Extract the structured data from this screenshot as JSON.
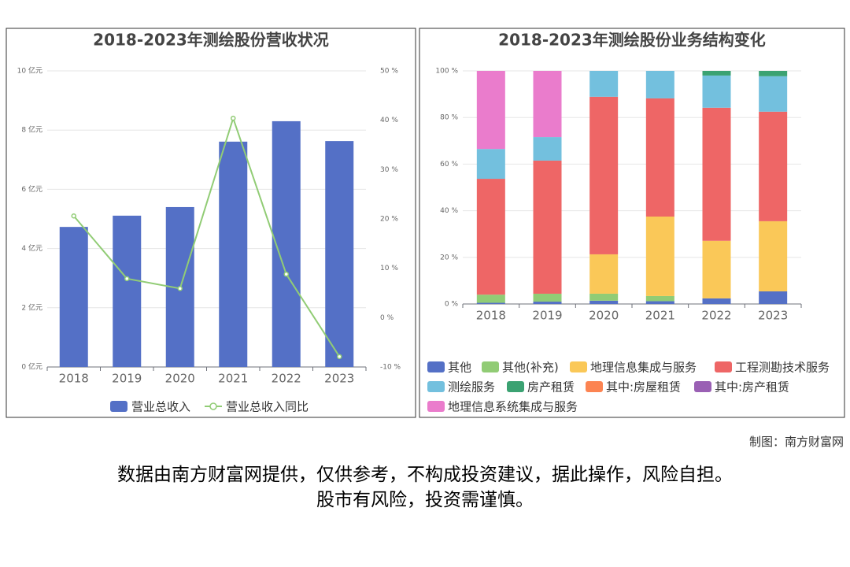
{
  "chart_data": [
    {
      "type": "bar",
      "title": "2018-2023年测绘股份营收状况",
      "categories": [
        "2018",
        "2019",
        "2020",
        "2021",
        "2022",
        "2023"
      ],
      "series": [
        {
          "name": "营业总收入",
          "color": "#5470c6",
          "values": [
            4.73,
            5.11,
            5.4,
            7.61,
            8.3,
            7.63
          ]
        },
        {
          "name": "营业总收入同比",
          "color": "#91cc75",
          "type": "line",
          "axis": "y2",
          "values": [
            20.6,
            7.9,
            5.9,
            40.4,
            8.8,
            -7.9
          ]
        }
      ],
      "ylim": [
        0,
        10
      ],
      "yticks": [
        {
          "value": 0,
          "label": "0 亿元"
        },
        {
          "value": 2,
          "label": "2 亿元"
        },
        {
          "value": 4,
          "label": "4 亿元"
        },
        {
          "value": 6,
          "label": "6 亿元"
        },
        {
          "value": 8,
          "label": "8 亿元"
        },
        {
          "value": 10,
          "label": "10 亿元"
        }
      ],
      "y2lim": [
        -10,
        50
      ],
      "y2ticks": [
        {
          "value": -10,
          "label": "-10 %"
        },
        {
          "value": 0,
          "label": "0 %"
        },
        {
          "value": 10,
          "label": "10 %"
        },
        {
          "value": 20,
          "label": "20 %"
        },
        {
          "value": 30,
          "label": "30 %"
        },
        {
          "value": 40,
          "label": "40 %"
        },
        {
          "value": 50,
          "label": "50 %"
        }
      ],
      "grid": true,
      "legend": "bottom"
    },
    {
      "type": "stacked_bar",
      "title": "2018-2023年测绘股份业务结构变化",
      "categories": [
        "2018",
        "2019",
        "2020",
        "2021",
        "2022",
        "2023"
      ],
      "series": [
        {
          "name": "其他",
          "color": "#5470c6",
          "values": [
            0.5,
            1,
            1.4,
            1.2,
            2.4,
            5.4
          ]
        },
        {
          "name": "其他(补充)",
          "color": "#91cc75",
          "values": [
            3.5,
            3.4,
            3,
            2.2,
            0,
            0
          ]
        },
        {
          "name": "地理信息集成与服务",
          "color": "#fac858",
          "values": [
            0,
            0,
            16.9,
            34.1,
            24.7,
            30.1
          ]
        },
        {
          "name": "工程测勘技术服务",
          "color": "#ee6666",
          "values": [
            49.7,
            57.1,
            67.6,
            50.7,
            57.1,
            47
          ]
        },
        {
          "name": "测绘服务",
          "color": "#73c0de",
          "values": [
            12.8,
            10.1,
            11.1,
            11.8,
            13.8,
            15.2
          ]
        },
        {
          "name": "房产租赁",
          "color": "#3ba272",
          "values": [
            0,
            0,
            0,
            0,
            2,
            2.3
          ]
        },
        {
          "name": "其中:房屋租赁",
          "color": "#fc8452",
          "values": [
            0,
            0,
            0,
            0,
            0,
            0
          ]
        },
        {
          "name": "其中:房产租赁",
          "color": "#9a60b4",
          "values": [
            0,
            0,
            0,
            0,
            0,
            0
          ]
        },
        {
          "name": "地理信息系统集成与服务",
          "color": "#ea7ccc",
          "values": [
            33.5,
            28.4,
            0,
            0,
            0,
            0
          ]
        }
      ],
      "ylim": [
        0,
        100
      ],
      "yticks": [
        {
          "value": 0,
          "label": "0 %"
        },
        {
          "value": 20,
          "label": "20 %"
        },
        {
          "value": 40,
          "label": "40 %"
        },
        {
          "value": 60,
          "label": "60 %"
        },
        {
          "value": 80,
          "label": "80 %"
        },
        {
          "value": 100,
          "label": "100 %"
        }
      ],
      "grid": true,
      "legend": "bottom"
    }
  ],
  "credit": "制图：南方财富网",
  "disclaimer": [
    "数据由南方财富网提供，仅供参考，不构成投资建议，据此操作，风险自担。",
    "股市有风险，投资需谨慎。"
  ]
}
